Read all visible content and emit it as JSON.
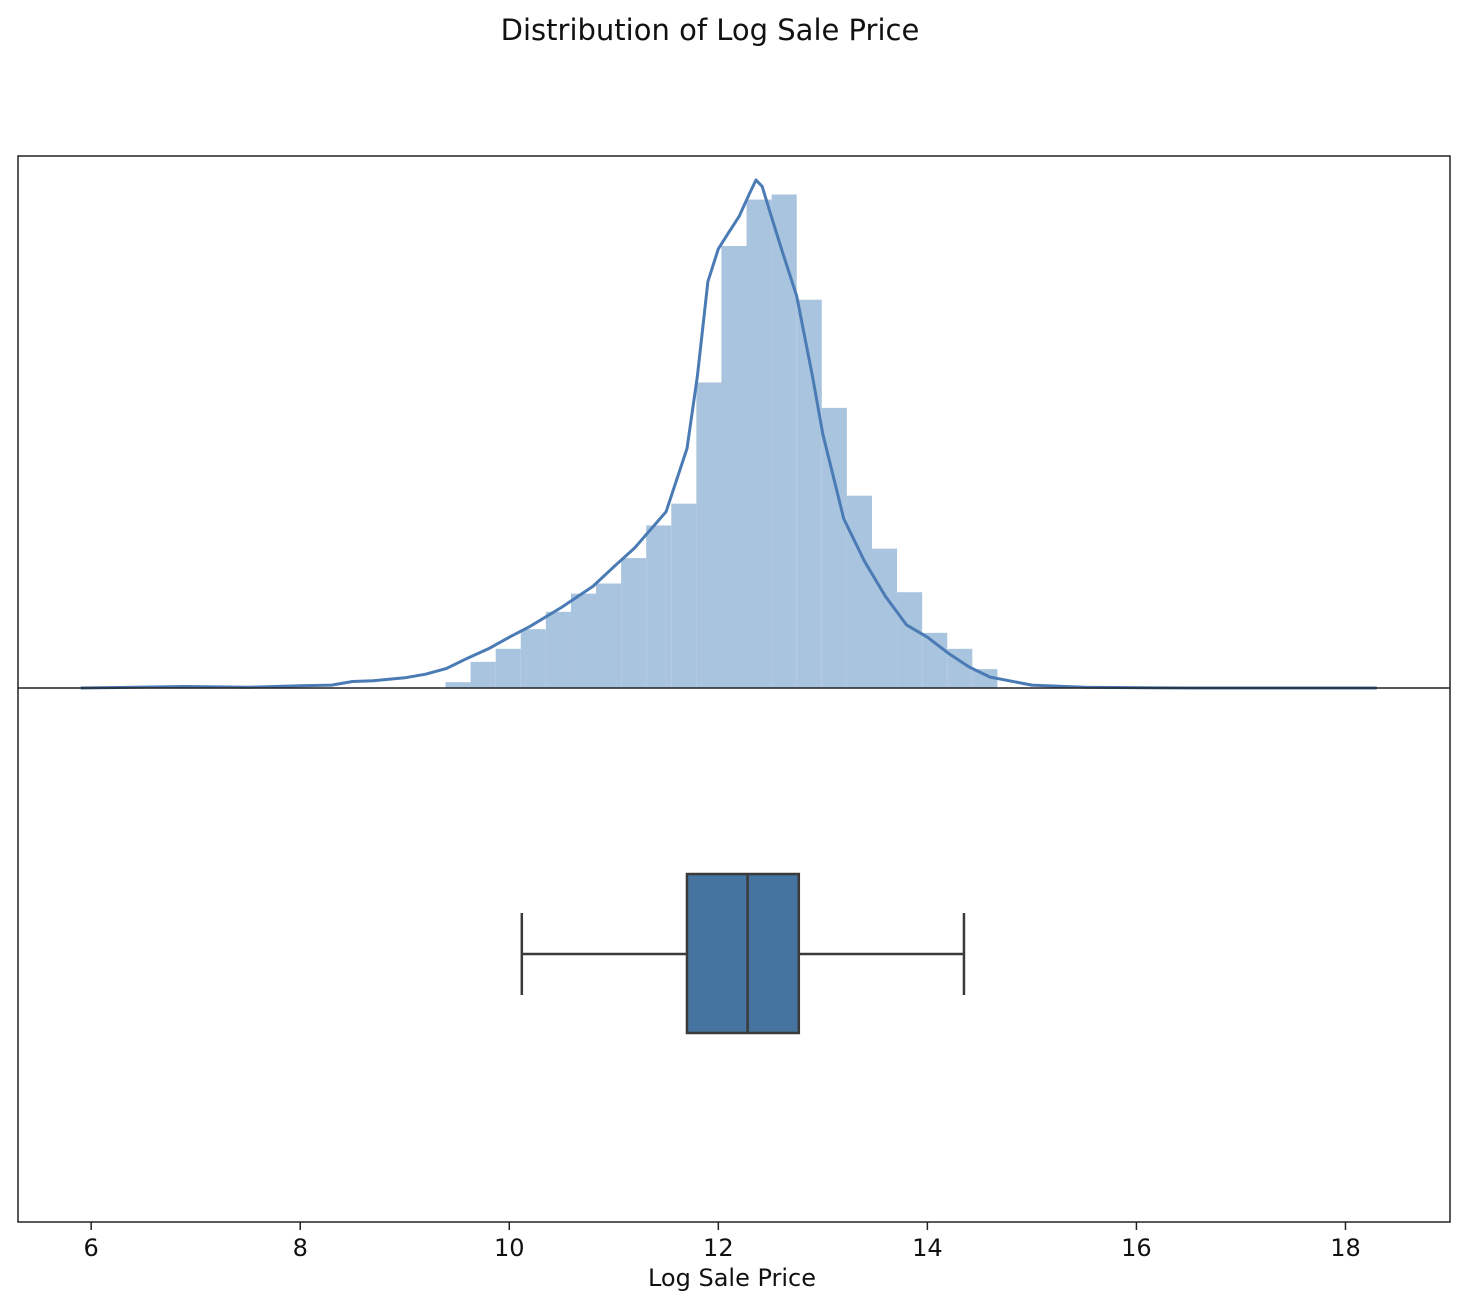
{
  "chart_data": {
    "type": "histogram-boxplot",
    "title": "Distribution of Log Sale Price",
    "xlabel": "Log Sale Price",
    "xlim": [
      5.3,
      19.0
    ],
    "xticks": [
      6,
      8,
      10,
      12,
      14,
      16,
      18
    ],
    "colors": {
      "hist_fill": "#a9c4de",
      "kde_line": "#4a7bb5",
      "box_fill": "#44749f",
      "box_line": "#3a3a3a",
      "axes": "#222222"
    },
    "histogram": {
      "bins": [
        {
          "x0": 9.39,
          "x1": 9.63,
          "density": 0.008
        },
        {
          "x0": 9.63,
          "x1": 9.87,
          "density": 0.036
        },
        {
          "x0": 9.87,
          "x1": 10.11,
          "density": 0.054
        },
        {
          "x0": 10.11,
          "x1": 10.35,
          "density": 0.081
        },
        {
          "x0": 10.35,
          "x1": 10.59,
          "density": 0.105
        },
        {
          "x0": 10.59,
          "x1": 10.83,
          "density": 0.13
        },
        {
          "x0": 10.83,
          "x1": 11.07,
          "density": 0.144
        },
        {
          "x0": 11.07,
          "x1": 11.31,
          "density": 0.179
        },
        {
          "x0": 11.31,
          "x1": 11.55,
          "density": 0.224
        },
        {
          "x0": 11.55,
          "x1": 11.79,
          "density": 0.254
        },
        {
          "x0": 11.79,
          "x1": 12.03,
          "density": 0.421
        },
        {
          "x0": 12.03,
          "x1": 12.27,
          "density": 0.609
        },
        {
          "x0": 12.27,
          "x1": 12.51,
          "density": 0.673
        },
        {
          "x0": 12.51,
          "x1": 12.75,
          "density": 0.68
        },
        {
          "x0": 12.75,
          "x1": 12.99,
          "density": 0.535
        },
        {
          "x0": 12.99,
          "x1": 13.23,
          "density": 0.386
        },
        {
          "x0": 13.23,
          "x1": 13.47,
          "density": 0.265
        },
        {
          "x0": 13.47,
          "x1": 13.71,
          "density": 0.192
        },
        {
          "x0": 13.71,
          "x1": 13.95,
          "density": 0.132
        },
        {
          "x0": 13.95,
          "x1": 14.19,
          "density": 0.076
        },
        {
          "x0": 14.19,
          "x1": 14.43,
          "density": 0.054
        },
        {
          "x0": 14.43,
          "x1": 14.67,
          "density": 0.026
        }
      ]
    },
    "kde": {
      "x": [
        5.9,
        6.9,
        7.5,
        8.0,
        8.3,
        8.5,
        8.7,
        9.0,
        9.2,
        9.4,
        9.6,
        9.8,
        10.0,
        10.2,
        10.5,
        10.8,
        11.0,
        11.2,
        11.5,
        11.7,
        11.8,
        11.9,
        12.0,
        12.1,
        12.2,
        12.3,
        12.36,
        12.42,
        12.5,
        12.6,
        12.75,
        12.9,
        13.0,
        13.2,
        13.4,
        13.6,
        13.8,
        14.0,
        14.2,
        14.4,
        14.6,
        15.0,
        15.5,
        16.5,
        18.3
      ],
      "y": [
        0.0,
        0.002,
        0.001,
        0.003,
        0.004,
        0.009,
        0.01,
        0.014,
        0.019,
        0.027,
        0.041,
        0.054,
        0.07,
        0.085,
        0.111,
        0.14,
        0.167,
        0.193,
        0.243,
        0.33,
        0.43,
        0.56,
        0.605,
        0.628,
        0.65,
        0.682,
        0.7,
        0.691,
        0.653,
        0.607,
        0.54,
        0.43,
        0.35,
        0.233,
        0.174,
        0.126,
        0.087,
        0.07,
        0.048,
        0.029,
        0.015,
        0.004,
        0.001,
        0.0,
        0.0
      ],
      "ymax": 0.7
    },
    "boxplot": {
      "whisker_low": 10.12,
      "q1": 11.7,
      "median": 12.28,
      "q3": 12.77,
      "whisker_high": 14.35
    }
  }
}
